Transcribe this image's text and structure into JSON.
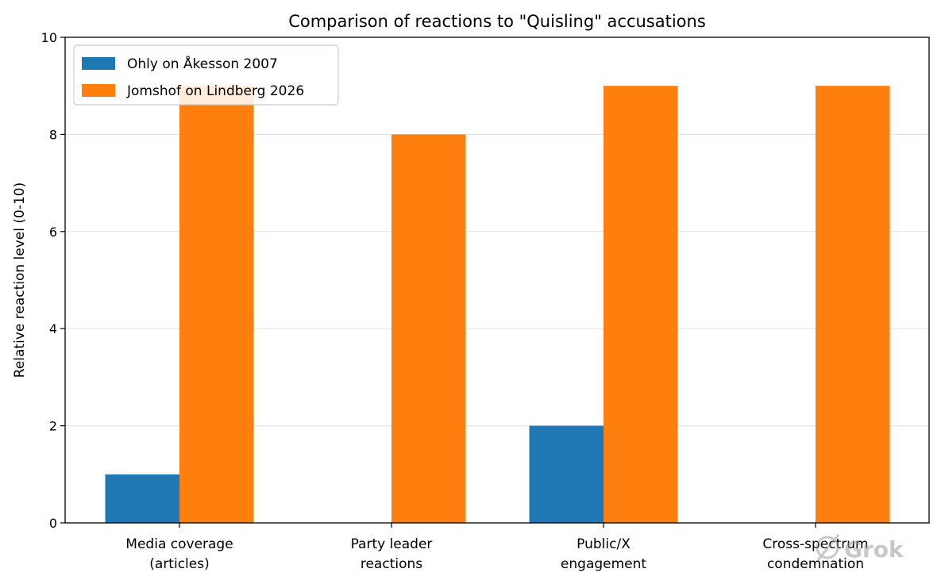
{
  "chart_data": {
    "type": "bar",
    "title": "Comparison of reactions to \"Quisling\" accusations",
    "xlabel": "",
    "ylabel": "Relative reaction level (0-10)",
    "ylim": [
      0,
      10
    ],
    "yticks": [
      0,
      2,
      4,
      6,
      8,
      10
    ],
    "grid": "horizontal",
    "legend_position": "top-left",
    "categories": [
      [
        "Media coverage",
        "(articles)"
      ],
      [
        "Party leader",
        "reactions"
      ],
      [
        "Public/X",
        "engagement"
      ],
      [
        "Cross-spectrum",
        "condemnation"
      ]
    ],
    "series": [
      {
        "name": "Ohly on Åkesson 2007",
        "color": "#1f77b4",
        "values": [
          1,
          0,
          2,
          0
        ]
      },
      {
        "name": "Jomshof on Lindberg 2026",
        "color": "#ff7f0e",
        "values": [
          9,
          8,
          9,
          9
        ]
      }
    ]
  },
  "watermark": {
    "text": "Grok",
    "icon": "grok-logo-icon"
  }
}
